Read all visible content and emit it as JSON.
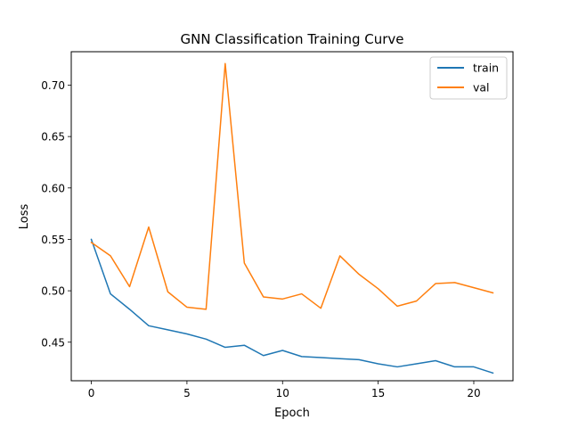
{
  "chart_data": {
    "type": "line",
    "title": "GNN Classification Training Curve",
    "xlabel": "Epoch",
    "ylabel": "Loss",
    "xlim": [
      -1.05,
      22.05
    ],
    "ylim": [
      0.4125,
      0.7325
    ],
    "xticks": [
      0,
      5,
      10,
      15,
      20
    ],
    "xtick_labels": [
      "0",
      "5",
      "10",
      "15",
      "20"
    ],
    "yticks": [
      0.45,
      0.5,
      0.55,
      0.6,
      0.65,
      0.7
    ],
    "ytick_labels": [
      "0.45",
      "0.50",
      "0.55",
      "0.60",
      "0.65",
      "0.70"
    ],
    "grid": false,
    "legend_position": "top-right",
    "x": [
      0,
      1,
      2,
      3,
      4,
      5,
      6,
      7,
      8,
      9,
      10,
      11,
      12,
      13,
      14,
      15,
      16,
      17,
      18,
      19,
      20,
      21
    ],
    "series": [
      {
        "name": "train",
        "color": "#1f77b4",
        "values": [
          0.55,
          0.497,
          0.482,
          0.466,
          0.462,
          0.458,
          0.453,
          0.445,
          0.447,
          0.437,
          0.442,
          0.436,
          0.435,
          0.434,
          0.433,
          0.429,
          0.426,
          0.429,
          0.432,
          0.426,
          0.426,
          0.42
        ]
      },
      {
        "name": "val",
        "color": "#ff7f0e",
        "values": [
          0.547,
          0.534,
          0.504,
          0.562,
          0.499,
          0.484,
          0.482,
          0.721,
          0.527,
          0.494,
          0.492,
          0.497,
          0.483,
          0.534,
          0.516,
          0.502,
          0.485,
          0.49,
          0.507,
          0.508,
          0.503,
          0.498
        ]
      }
    ]
  }
}
